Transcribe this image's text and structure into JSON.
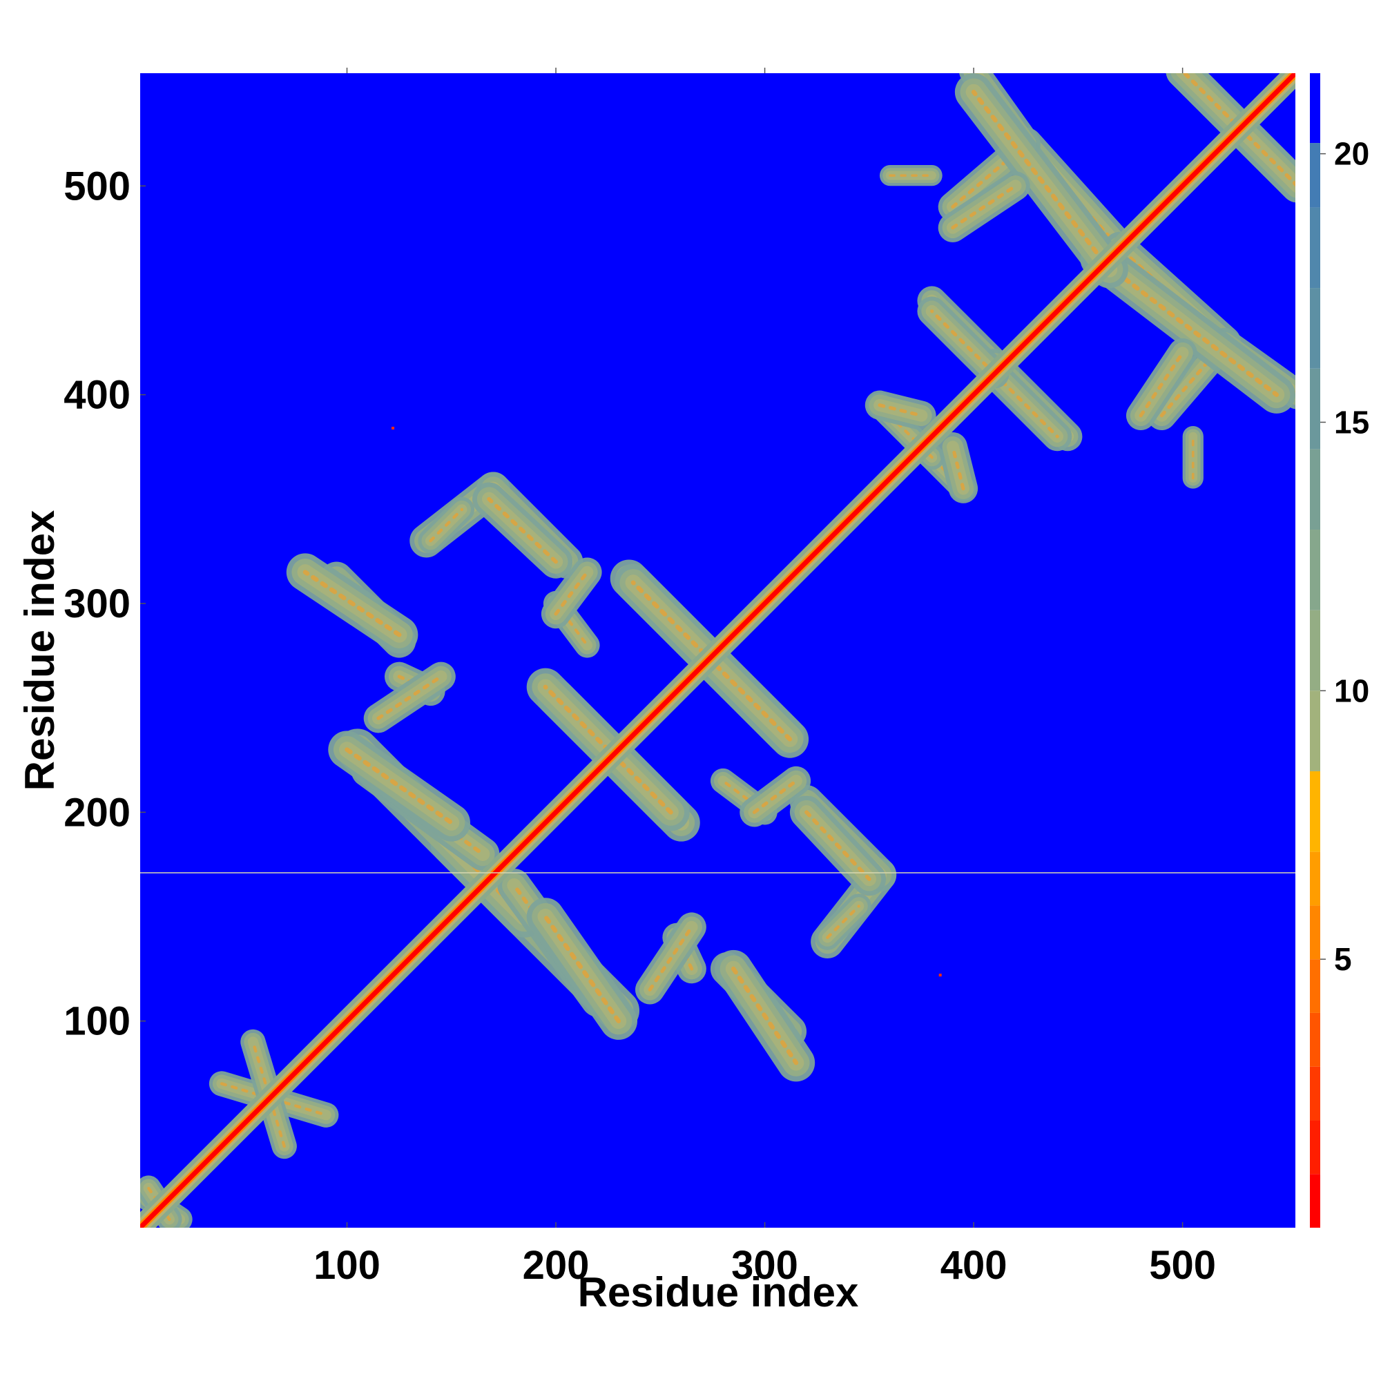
{
  "chart_data": {
    "type": "heatmap",
    "title": "",
    "xlabel": "Residue index",
    "ylabel": "Residue index",
    "xlim": [
      1,
      554
    ],
    "ylim": [
      1,
      554
    ],
    "x_ticks": [
      100,
      200,
      300,
      400,
      500
    ],
    "y_ticks": [
      100,
      200,
      300,
      400,
      500
    ],
    "colorbar": {
      "range": [
        0,
        21.5
      ],
      "ticks": [
        5,
        10,
        15,
        20
      ],
      "levels": [
        {
          "from": 0,
          "to": 1,
          "color": "#ff0000"
        },
        {
          "from": 1,
          "to": 2,
          "color": "#ff1e00"
        },
        {
          "from": 2,
          "to": 3,
          "color": "#ff3a00"
        },
        {
          "from": 3,
          "to": 4,
          "color": "#ff5500"
        },
        {
          "from": 4,
          "to": 5,
          "color": "#ff6f00"
        },
        {
          "from": 5,
          "to": 6,
          "color": "#ff8600"
        },
        {
          "from": 6,
          "to": 7,
          "color": "#ff9d00"
        },
        {
          "from": 7,
          "to": 8.5,
          "color": "#ffb400"
        },
        {
          "from": 8.5,
          "to": 10,
          "color": "#a2b27c"
        },
        {
          "from": 10,
          "to": 11.5,
          "color": "#94ad84"
        },
        {
          "from": 11.5,
          "to": 13,
          "color": "#86a78c"
        },
        {
          "from": 13,
          "to": 14.5,
          "color": "#79a094"
        },
        {
          "from": 14.5,
          "to": 16,
          "color": "#6b989c"
        },
        {
          "from": 16,
          "to": 17.5,
          "color": "#5d90a4"
        },
        {
          "from": 17.5,
          "to": 19,
          "color": "#5087ac"
        },
        {
          "from": 19,
          "to": 20.2,
          "color": "#437cb4"
        },
        {
          "from": 20.2,
          "to": 21.5,
          "color": "#0000ff"
        }
      ]
    },
    "background_color": "#0000ff",
    "diagonal": {
      "from": 1,
      "to": 554,
      "color": "#ff0000",
      "half_width": 3
    },
    "contact_bands": [
      {
        "from": [
          150,
          185
        ],
        "to": [
          230,
          105
        ],
        "half_width": 10
      },
      {
        "from": [
          110,
          220
        ],
        "to": [
          165,
          180
        ],
        "half_width": 8
      },
      {
        "from": [
          100,
          230
        ],
        "to": [
          150,
          195
        ],
        "half_width": 9
      },
      {
        "from": [
          95,
          312
        ],
        "to": [
          125,
          282
        ],
        "half_width": 8
      },
      {
        "from": [
          138,
          330
        ],
        "to": [
          170,
          355
        ],
        "half_width": 8
      },
      {
        "from": [
          170,
          355
        ],
        "to": [
          205,
          320
        ],
        "half_width": 8
      },
      {
        "from": [
          125,
          265
        ],
        "to": [
          140,
          258
        ],
        "half_width": 7
      },
      {
        "from": [
          200,
          255
        ],
        "to": [
          260,
          195
        ],
        "half_width": 9
      },
      {
        "from": [
          235,
          312
        ],
        "to": [
          310,
          237
        ],
        "half_width": 9
      },
      {
        "from": [
          200,
          300
        ],
        "to": [
          215,
          280
        ],
        "half_width": 6
      },
      {
        "from": [
          245,
          115
        ],
        "to": [
          265,
          145
        ],
        "half_width": 7
      },
      {
        "from": [
          285,
          125
        ],
        "to": [
          315,
          80
        ],
        "half_width": 9
      },
      {
        "from": [
          295,
          200
        ],
        "to": [
          315,
          215
        ],
        "half_width": 7
      },
      {
        "from": [
          330,
          140
        ],
        "to": [
          345,
          155
        ],
        "half_width": 6
      },
      {
        "from": [
          320,
          200
        ],
        "to": [
          350,
          168
        ],
        "half_width": 8
      },
      {
        "from": [
          40,
          70
        ],
        "to": [
          90,
          55
        ],
        "half_width": 6
      },
      {
        "from": [
          5,
          15
        ],
        "to": [
          20,
          5
        ],
        "half_width": 6
      },
      {
        "from": [
          370,
          380
        ],
        "to": [
          395,
          355
        ],
        "half_width": 6
      },
      {
        "from": [
          355,
          395
        ],
        "to": [
          375,
          390
        ],
        "half_width": 7
      },
      {
        "from": [
          380,
          445
        ],
        "to": [
          415,
          410
        ],
        "half_width": 7
      },
      {
        "from": [
          410,
          410
        ],
        "to": [
          440,
          380
        ],
        "half_width": 7
      },
      {
        "from": [
          390,
          490
        ],
        "to": [
          425,
          520
        ],
        "half_width": 7
      },
      {
        "from": [
          425,
          520
        ],
        "to": [
          470,
          470
        ],
        "half_width": 8
      },
      {
        "from": [
          400,
          555
        ],
        "to": [
          425,
          520
        ],
        "half_width": 7
      },
      {
        "from": [
          460,
          465
        ],
        "to": [
          545,
          400
        ],
        "half_width": 9
      },
      {
        "from": [
          480,
          390
        ],
        "to": [
          500,
          420
        ],
        "half_width": 7
      },
      {
        "from": [
          500,
          555
        ],
        "to": [
          555,
          500
        ],
        "half_width": 8
      },
      {
        "from": [
          360,
          505
        ],
        "to": [
          380,
          505
        ],
        "half_width": 5
      }
    ],
    "isolated_contacts": [
      [
        122,
        384
      ],
      [
        384,
        122
      ]
    ],
    "horizontal_line": {
      "y": 171,
      "color": "#d8d8b0"
    }
  }
}
